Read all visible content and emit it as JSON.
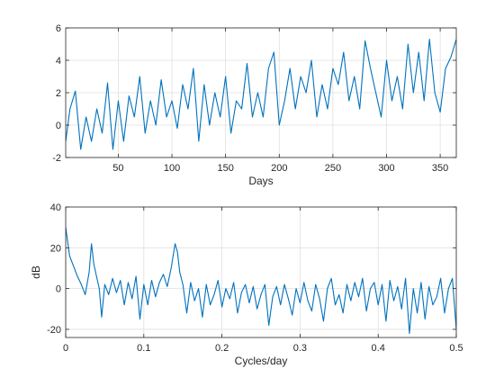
{
  "chart_data": [
    {
      "type": "line",
      "title": "",
      "xlabel": "Days",
      "ylabel": "",
      "xlim": [
        1,
        365
      ],
      "ylim": [
        -2,
        6
      ],
      "xticks": [
        50,
        100,
        150,
        200,
        250,
        300,
        350
      ],
      "yticks": [
        -2,
        0,
        2,
        4,
        6
      ],
      "grid": true,
      "color": "#0072BD",
      "x": [
        1,
        5,
        10,
        15,
        20,
        25,
        30,
        35,
        40,
        45,
        50,
        55,
        60,
        65,
        70,
        75,
        80,
        85,
        90,
        95,
        100,
        105,
        110,
        115,
        120,
        125,
        130,
        135,
        140,
        145,
        150,
        155,
        160,
        165,
        170,
        175,
        180,
        185,
        190,
        195,
        200,
        205,
        210,
        215,
        220,
        225,
        230,
        235,
        240,
        245,
        250,
        255,
        260,
        265,
        270,
        275,
        280,
        285,
        290,
        295,
        300,
        305,
        310,
        315,
        320,
        325,
        330,
        335,
        340,
        345,
        350,
        355,
        360,
        365
      ],
      "series": [
        {
          "values": [
            -1.0,
            1.0,
            2.1,
            -1.5,
            0.5,
            -1.0,
            1.0,
            -0.5,
            2.6,
            -1.5,
            1.5,
            -1.0,
            1.8,
            0.5,
            3.0,
            -0.5,
            1.5,
            0.0,
            2.8,
            0.5,
            1.5,
            -0.2,
            2.5,
            1.0,
            3.5,
            -1.0,
            2.5,
            0.0,
            2.0,
            0.5,
            3.0,
            -0.5,
            1.5,
            1.0,
            3.8,
            0.5,
            2.0,
            0.5,
            3.5,
            4.5,
            0.0,
            1.5,
            3.5,
            1.0,
            3.0,
            2.0,
            4.0,
            0.5,
            2.5,
            1.0,
            3.5,
            2.5,
            4.5,
            1.5,
            3.0,
            1.0,
            5.2,
            3.5,
            2.0,
            0.5,
            4.0,
            1.5,
            3.0,
            1.0,
            5.0,
            2.0,
            4.5,
            1.5,
            5.3,
            2.0,
            0.8,
            3.5,
            4.2,
            5.3
          ]
        }
      ]
    },
    {
      "type": "line",
      "title": "",
      "xlabel": "Cycles/day",
      "ylabel": "dB",
      "xlim": [
        0,
        0.5
      ],
      "ylim": [
        -24,
        40
      ],
      "xticks": [
        0,
        0.1,
        0.2,
        0.3,
        0.4,
        0.5
      ],
      "yticks": [
        -20,
        0,
        20,
        40
      ],
      "grid": true,
      "color": "#0072BD",
      "x": [
        0.0,
        0.005,
        0.01,
        0.015,
        0.02,
        0.025,
        0.03,
        0.033,
        0.036,
        0.04,
        0.043,
        0.046,
        0.05,
        0.055,
        0.06,
        0.065,
        0.07,
        0.075,
        0.08,
        0.085,
        0.09,
        0.095,
        0.1,
        0.105,
        0.11,
        0.115,
        0.12,
        0.125,
        0.13,
        0.135,
        0.14,
        0.143,
        0.146,
        0.15,
        0.155,
        0.16,
        0.165,
        0.17,
        0.175,
        0.18,
        0.185,
        0.19,
        0.195,
        0.2,
        0.205,
        0.21,
        0.215,
        0.22,
        0.225,
        0.23,
        0.235,
        0.24,
        0.245,
        0.25,
        0.255,
        0.26,
        0.265,
        0.27,
        0.275,
        0.28,
        0.285,
        0.29,
        0.295,
        0.3,
        0.305,
        0.31,
        0.315,
        0.32,
        0.325,
        0.33,
        0.335,
        0.34,
        0.345,
        0.35,
        0.355,
        0.36,
        0.365,
        0.37,
        0.375,
        0.38,
        0.385,
        0.39,
        0.395,
        0.4,
        0.405,
        0.41,
        0.415,
        0.42,
        0.425,
        0.43,
        0.435,
        0.44,
        0.445,
        0.45,
        0.455,
        0.46,
        0.465,
        0.47,
        0.475,
        0.48,
        0.485,
        0.49,
        0.495,
        0.5
      ],
      "series": [
        {
          "values": [
            30,
            16,
            11,
            6,
            2,
            -3,
            8,
            22,
            12,
            5,
            0,
            -14,
            2,
            -3,
            5,
            -2,
            4,
            -8,
            3,
            -5,
            6,
            -15,
            2,
            -8,
            4,
            -4,
            3,
            7,
            1,
            10,
            22,
            18,
            8,
            2,
            -12,
            3,
            -6,
            0,
            -14,
            2,
            -8,
            -3,
            4,
            -9,
            0,
            -5,
            3,
            -12,
            -2,
            2,
            -7,
            1,
            -10,
            -3,
            2,
            -18,
            -4,
            1,
            -8,
            2,
            -5,
            -13,
            0,
            -7,
            3,
            -6,
            -11,
            2,
            -5,
            -16,
            0,
            5,
            -8,
            -3,
            -12,
            2,
            -6,
            3,
            -4,
            5,
            -11,
            0,
            3,
            -8,
            2,
            -16,
            4,
            -6,
            1,
            -10,
            5,
            -22,
            0,
            -12,
            3,
            -15,
            1,
            -8,
            -4,
            5,
            -12,
            0,
            5,
            -20
          ]
        }
      ]
    }
  ]
}
